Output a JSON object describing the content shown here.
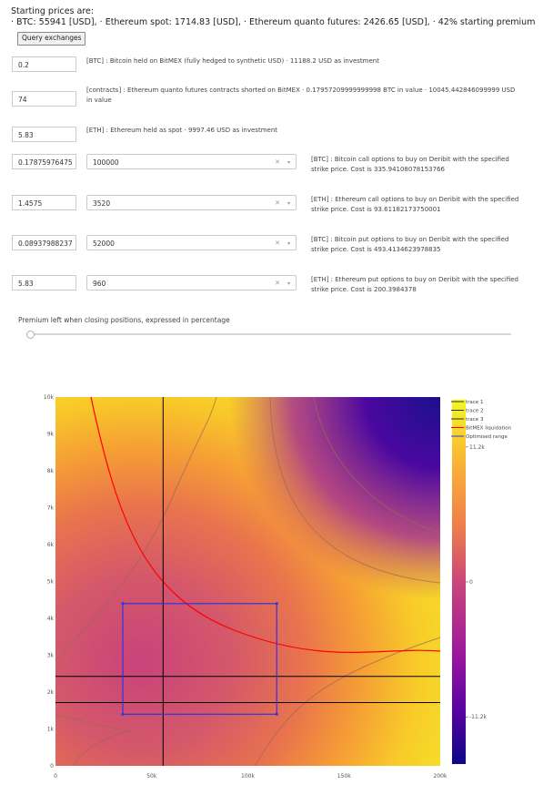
{
  "header": {
    "title": "Starting prices are:",
    "prices_line": "· BTC: 55941 [USD], · Ethereum spot: 1714.83 [USD], · Ethereum quanto futures: 2426.65 [USD], · 42% starting premium",
    "query_button": "Query exchanges"
  },
  "rows": [
    {
      "value": "0.2",
      "desc": "[BTC] : Bitcoin held on BitMEX (fully hedged to synthetic USD) · 11188.2 USD as investment"
    },
    {
      "value": "74",
      "desc": "[contracts] : Ethereum quanto futures contracts shorted on BitMEX · 0.17957209999999998 BTC in value · 10045.442846099999 USD in value"
    },
    {
      "value": "5.83",
      "desc": "[ETH] : Ethereum held as spot · 9997.46 USD as investment"
    },
    {
      "value": "0.17875976475",
      "select": "100000",
      "desc": "[BTC] : Bitcoin call options to buy on Deribit with the specified strike price. Cost is 335.94108078153766"
    },
    {
      "value": "1.4575",
      "select": "3520",
      "desc": "[ETH] : Ethereum call options to buy on Deribit with the specified strike price. Cost is 93.61182173750001"
    },
    {
      "value": "0.08937988237",
      "select": "52000",
      "desc": "[BTC] : Bitcoin put options to buy on Deribit with the specified strike price. Cost is 493.4134623978835"
    },
    {
      "value": "5.83",
      "select": "960",
      "desc": "[ETH] : Ethereum put options to buy on Deribit with the specified strike price. Cost is 200.3984378"
    }
  ],
  "slider": {
    "label": "Premium left when closing positions, expressed in percentage",
    "value": 0
  },
  "chart_data": {
    "type": "heatmap",
    "x_ticks": [
      "0",
      "50k",
      "100k",
      "150k",
      "200k"
    ],
    "y_ticks": [
      "0",
      "1k",
      "2k",
      "3k",
      "4k",
      "5k",
      "6k",
      "7k",
      "8k",
      "9k",
      "10k"
    ],
    "xlim": [
      0,
      200000
    ],
    "ylim": [
      0,
      10000
    ],
    "colorbar": {
      "ticks": [
        "11.2k",
        "0",
        "-11.2k"
      ],
      "values": [
        11200,
        0,
        -11200
      ]
    },
    "legend": [
      "trace 1",
      "trace 2",
      "trace 3",
      "BitMEX liquidation",
      "Optimised range"
    ],
    "colors": {
      "liquidation": "#ff0000",
      "optimised_range": "#3333dd",
      "reference_lines": "#000000",
      "contours": "#9a6a55"
    },
    "vertical_line_x": 55941,
    "horizontal_lines_y": [
      2426.65,
      1714.83
    ],
    "optimised_range": {
      "x": [
        35000,
        115000
      ],
      "y": [
        1400,
        4400
      ]
    }
  }
}
